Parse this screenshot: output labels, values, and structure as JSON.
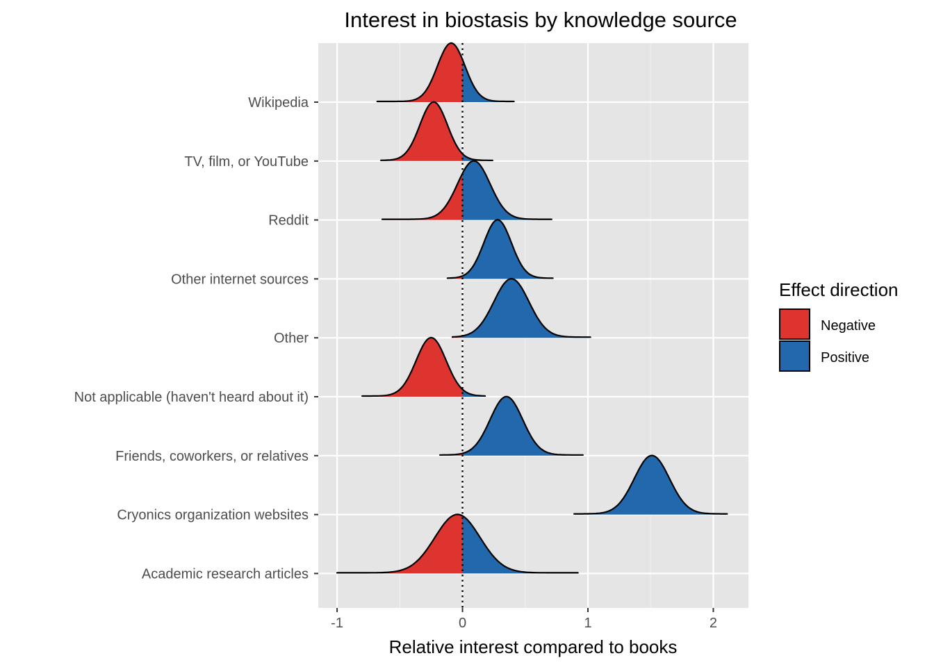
{
  "chart_data": {
    "type": "ridgeline",
    "title": "Interest in biostasis by knowledge source",
    "xlabel": "Relative interest compared to books",
    "ylabel": "",
    "xlim": [
      -1.15,
      2.28
    ],
    "xticks": [
      -1,
      0,
      1,
      2
    ],
    "x_tick_labels": [
      "-1",
      "0",
      "1",
      "2"
    ],
    "reference_line_x": 0,
    "grid": true,
    "legend": {
      "title": "Effect direction",
      "position": "right",
      "entries": [
        {
          "label": "Negative",
          "color": "#DE3430"
        },
        {
          "label": "Positive",
          "color": "#2268AC"
        }
      ]
    },
    "colors": {
      "negative": "#DE3430",
      "positive": "#2268AC",
      "panel": "#E5E5E5",
      "grid": "#FFFFFF"
    },
    "categories": [
      "Wikipedia",
      "TV, film, or YouTube",
      "Reddit",
      "Other internet sources",
      "Other",
      "Not applicable (haven't heard about it)",
      "Friends, coworkers, or relatives",
      "Cryonics organization websites",
      "Academic research articles"
    ],
    "distributions": [
      {
        "name": "Wikipedia",
        "center": -0.09,
        "sd": 0.11,
        "min": -0.68,
        "max": 0.41
      },
      {
        "name": "TV, film, or YouTube",
        "center": -0.23,
        "sd": 0.11,
        "min": -0.65,
        "max": 0.24
      },
      {
        "name": "Reddit",
        "center": 0.09,
        "sd": 0.13,
        "min": -0.64,
        "max": 0.71
      },
      {
        "name": "Other internet sources",
        "center": 0.28,
        "sd": 0.11,
        "min": -0.12,
        "max": 0.72
      },
      {
        "name": "Other",
        "center": 0.39,
        "sd": 0.14,
        "min": -0.08,
        "max": 1.02
      },
      {
        "name": "Not applicable (haven't heard about it)",
        "center": -0.25,
        "sd": 0.12,
        "min": -0.8,
        "max": 0.18
      },
      {
        "name": "Friends, coworkers, or relatives",
        "center": 0.35,
        "sd": 0.13,
        "min": -0.18,
        "max": 0.96
      },
      {
        "name": "Cryonics organization websites",
        "center": 1.51,
        "sd": 0.14,
        "min": 0.89,
        "max": 2.11
      },
      {
        "name": "Academic research articles",
        "center": -0.04,
        "sd": 0.18,
        "min": -1.0,
        "max": 0.92
      }
    ]
  }
}
